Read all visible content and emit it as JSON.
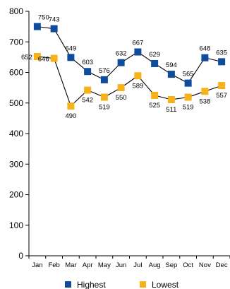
{
  "chart_data": {
    "type": "line",
    "categories": [
      "Jan",
      "Feb",
      "Mar",
      "Apr",
      "May",
      "Jun",
      "Jul",
      "Aug",
      "Sep",
      "Oct",
      "Nov",
      "Dec"
    ],
    "series": [
      {
        "name": "Highest",
        "color": "#0f4c9c",
        "values": [
          750,
          743,
          649,
          603,
          576,
          632,
          667,
          629,
          594,
          565,
          648,
          635
        ],
        "labels": [
          "750",
          "743",
          "649",
          "603",
          "576",
          "632",
          "667",
          "629",
          "594",
          "565",
          "648",
          "635"
        ]
      },
      {
        "name": "Lowest",
        "color": "#f5b21b",
        "values": [
          652,
          646,
          490,
          542,
          519,
          550,
          589,
          525,
          511,
          519,
          538,
          557
        ],
        "labels": [
          "652",
          "646",
          "490",
          "542",
          "519",
          "550",
          "589",
          "525",
          "511",
          "519",
          "538",
          "557"
        ]
      }
    ],
    "ylim": [
      0,
      800
    ],
    "yticks": [
      0,
      100,
      200,
      300,
      400,
      500,
      600,
      700,
      800
    ],
    "ytick_labels": [
      "0",
      "100",
      "200",
      "300",
      "400",
      "500",
      "600",
      "700",
      "800"
    ],
    "grid": false,
    "legend_position": "bottom"
  }
}
